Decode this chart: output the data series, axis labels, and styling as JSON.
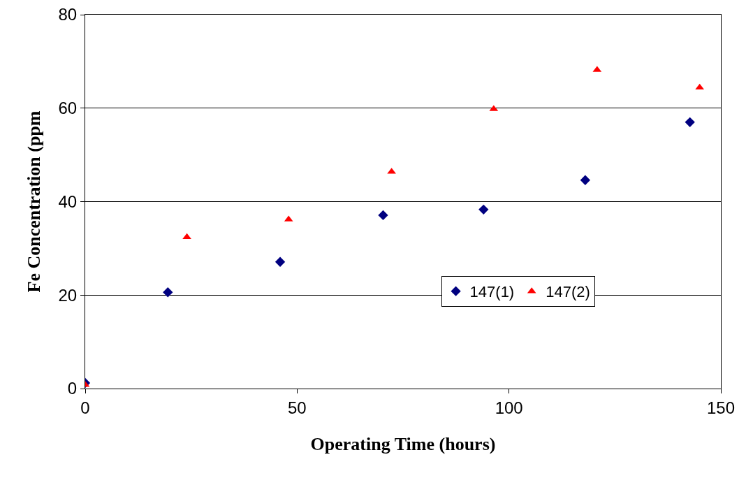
{
  "chart_data": {
    "type": "scatter",
    "xlabel": "Operating Time (hours)",
    "ylabel": "Fe Concentration (ppm",
    "xlim": [
      0,
      150
    ],
    "xticks": [
      0,
      50,
      100,
      150
    ],
    "ylim": [
      0,
      80
    ],
    "yticks": [
      0,
      20,
      40,
      60,
      80
    ],
    "grid": "y",
    "legend": "bottom right",
    "series": [
      {
        "name": "147(1)",
        "color": "#000080",
        "marker": "diamond",
        "x": [
          0,
          19.5,
          46,
          70.3,
          94,
          118,
          142.7
        ],
        "values": [
          1.2,
          20.6,
          27.1,
          37.1,
          38.3,
          44.6,
          57.0
        ]
      },
      {
        "name": "147(2)",
        "color": "#ff0000",
        "marker": "triangle",
        "x": [
          0,
          24,
          48,
          72.3,
          96.4,
          120.8,
          145
        ],
        "values": [
          0.8,
          32.4,
          36.2,
          46.4,
          59.8,
          68.2,
          64.4
        ]
      }
    ]
  }
}
